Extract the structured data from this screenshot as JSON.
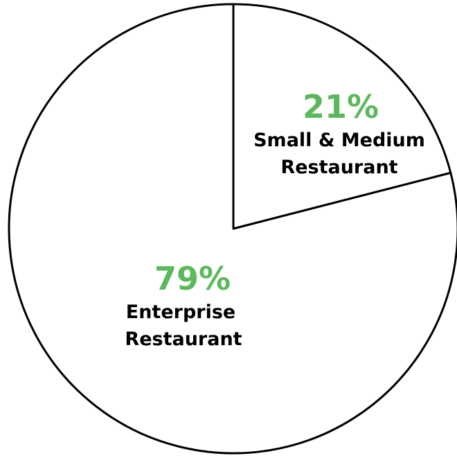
{
  "chart_data": {
    "type": "pie",
    "slices": [
      {
        "pct_label": "21%",
        "label_lines": [
          "Small & Medium",
          "Restaurant"
        ],
        "value": 21
      },
      {
        "pct_label": "79%",
        "label_lines": [
          "Enterprise",
          "Restaurant"
        ],
        "value": 79
      }
    ],
    "start_angle_deg": 0,
    "direction": "clockwise",
    "fill_color": "#ffffff",
    "stroke_color": "#000000",
    "percent_color": "#5cb85c"
  }
}
